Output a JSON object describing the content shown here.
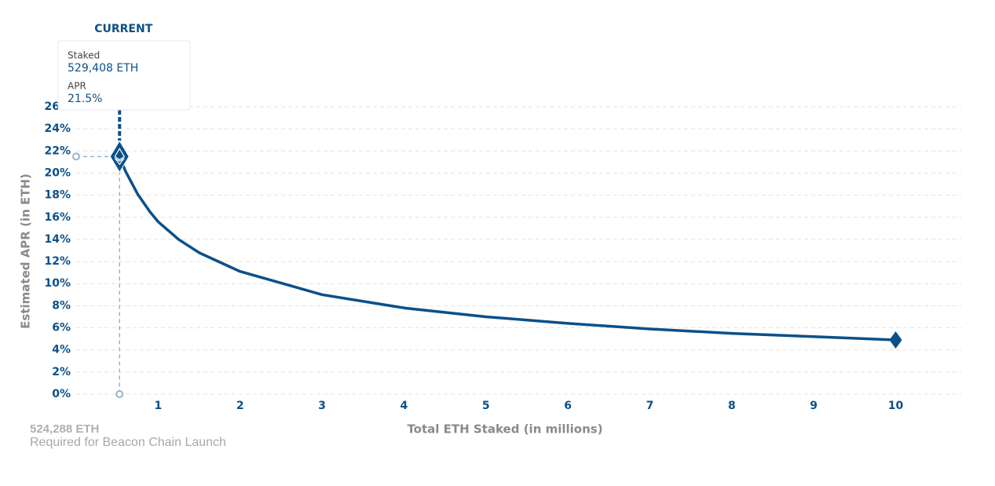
{
  "chart_data": {
    "type": "line",
    "xlabel": "Total ETH Staked  (in millions)",
    "ylabel": "Estimated APR (in ETH)",
    "x": [
      0.529408,
      0.6,
      0.75,
      0.9,
      1,
      1.25,
      1.5,
      2,
      3,
      4,
      5,
      6,
      7,
      8,
      9,
      10
    ],
    "series": [
      {
        "color": "#0b5088",
        "values": [
          21.5,
          20.2,
          18.1,
          16.5,
          15.6,
          14.0,
          12.8,
          11.1,
          9.0,
          7.8,
          7.0,
          6.4,
          5.9,
          5.5,
          5.2,
          4.9
        ]
      }
    ],
    "xlim": [
      0,
      10.8
    ],
    "ylim": [
      0,
      26
    ],
    "xticks": [
      1,
      2,
      3,
      4,
      5,
      6,
      7,
      8,
      9,
      10
    ],
    "yticks": [
      {
        "value": 0,
        "label": "0%"
      },
      {
        "value": 2,
        "label": "2%"
      },
      {
        "value": 4,
        "label": "4%"
      },
      {
        "value": 6,
        "label": "6%"
      },
      {
        "value": 8,
        "label": "8%"
      },
      {
        "value": 10,
        "label": "10%"
      },
      {
        "value": 12,
        "label": "12%"
      },
      {
        "value": 14,
        "label": "14%"
      },
      {
        "value": 16,
        "label": "16%"
      },
      {
        "value": 18,
        "label": "18%"
      },
      {
        "value": 20,
        "label": "20%"
      },
      {
        "value": 22,
        "label": "22%"
      },
      {
        "value": 24,
        "label": "24%"
      },
      {
        "value": 26,
        "label": "26%"
      }
    ],
    "grid": true,
    "current": {
      "title": "CURRENT",
      "staked_label": "Staked",
      "staked": "529,408 ETH",
      "apr_label": "APR",
      "apr": "21.5%",
      "x": 0.529408,
      "value": 21.5
    },
    "launch": {
      "amount": "524,288 ETH",
      "note": "Required for Beacon Chain Launch"
    }
  }
}
